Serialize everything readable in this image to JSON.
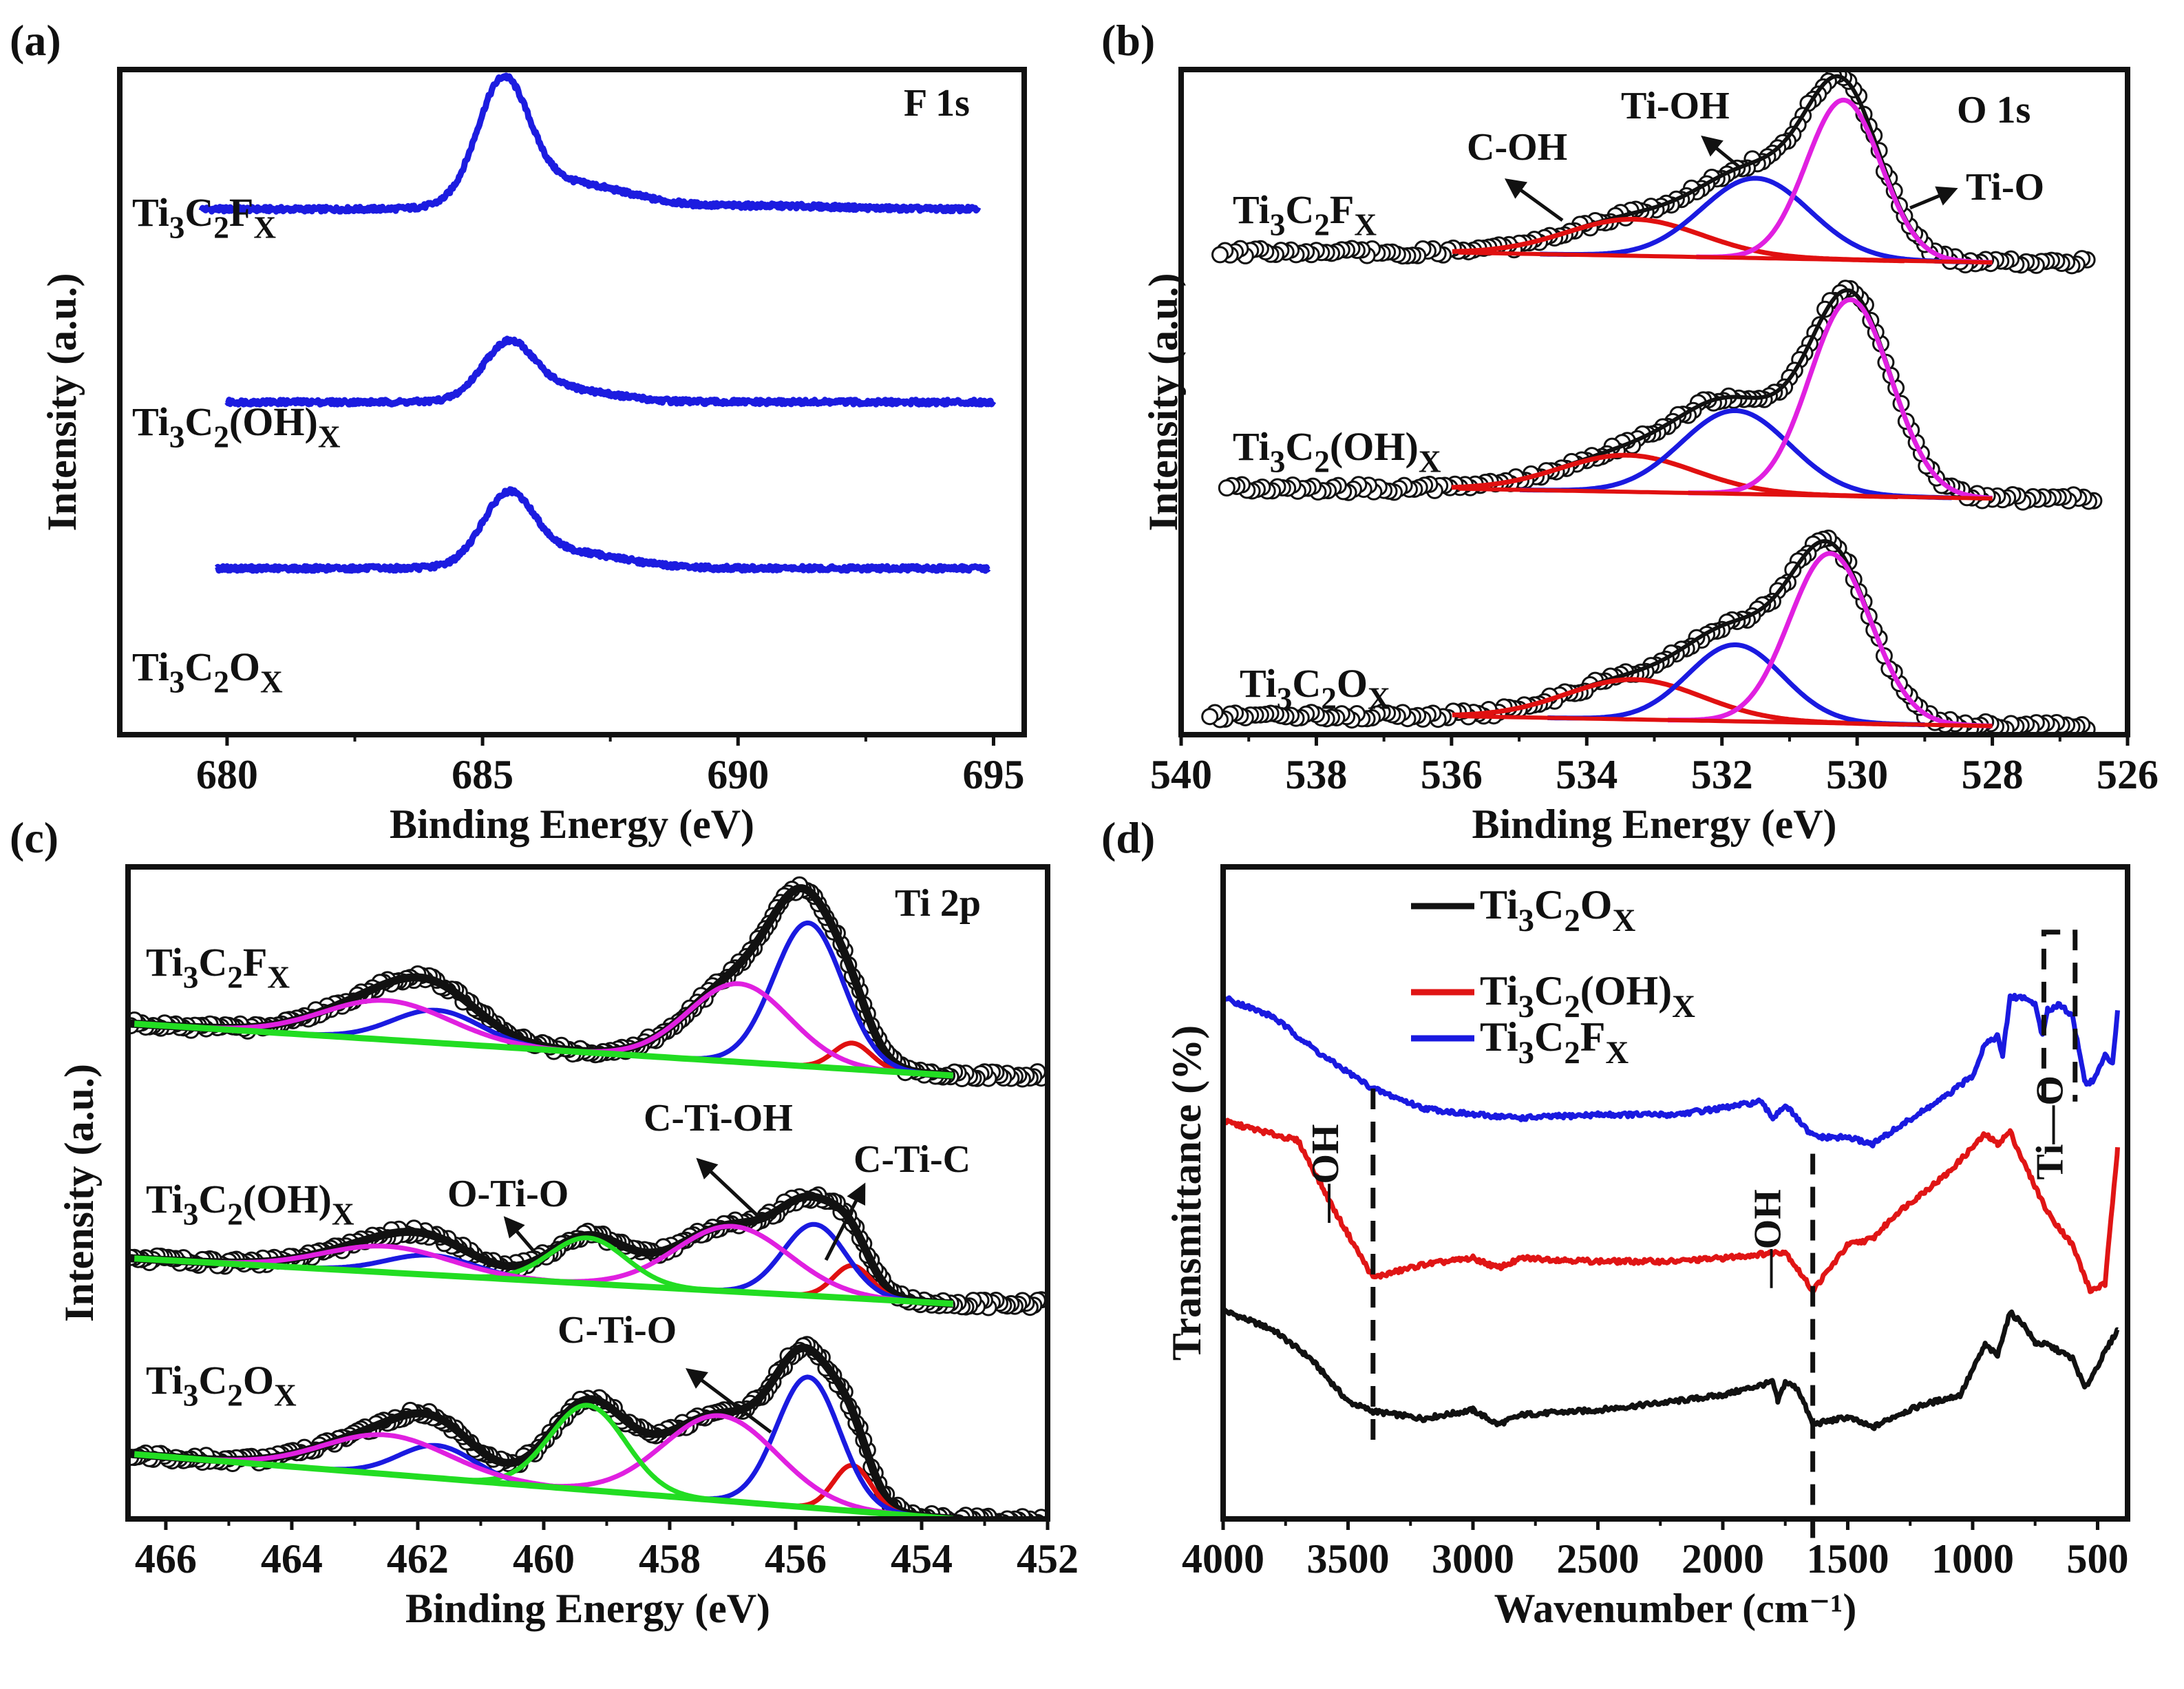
{
  "panel_labels": [
    "(a)",
    "(b)",
    "(c)",
    "(d)"
  ],
  "chart_data": [
    {
      "panel": "(a)",
      "type": "line",
      "title": "F 1s",
      "xlabel": "Binding Energy (eV)",
      "ylabel": "Intensity (a.u.)",
      "xlim": [
        677.9,
        695.6
      ],
      "ylim": [
        0,
        10
      ],
      "xticks": [
        680,
        685,
        690,
        695
      ],
      "color": "#1c1ce0",
      "series": [
        {
          "name": "Ti3C2FX",
          "x_range": [
            679.5,
            694.7
          ],
          "baseline": 7.9,
          "peaks": [
            {
              "center": 685.4,
              "amplitude": 1.75,
              "sigma": 0.5
            },
            {
              "center": 686.6,
              "amplitude": 0.4,
              "sigma": 1.2
            },
            {
              "center": 690.5,
              "amplitude": 0.05,
              "sigma": 1.5
            }
          ]
        },
        {
          "name": "Ti3C2(OH)X",
          "x_range": [
            680.0,
            695.0
          ],
          "baseline": 5.0,
          "peaks": [
            {
              "center": 685.5,
              "amplitude": 0.8,
              "sigma": 0.5
            },
            {
              "center": 686.5,
              "amplitude": 0.2,
              "sigma": 1.0
            }
          ]
        },
        {
          "name": "Ti3C2OX",
          "x_range": [
            679.8,
            694.9
          ],
          "baseline": 2.5,
          "peaks": [
            {
              "center": 685.5,
              "amplitude": 1.0,
              "sigma": 0.5
            },
            {
              "center": 686.6,
              "amplitude": 0.25,
              "sigma": 1.1
            }
          ]
        }
      ]
    },
    {
      "panel": "(b)",
      "type": "line",
      "title": "O 1s",
      "xlabel": "Binding Energy (eV)",
      "ylabel": "Intensity (a.u.)",
      "xlim": [
        540,
        526
      ],
      "ylim": [
        0,
        10
      ],
      "xticks": [
        540,
        538,
        536,
        534,
        532,
        530,
        528,
        526
      ],
      "fit_range": [
        536,
        528
      ],
      "series": [
        {
          "name": "Ti3C2FX",
          "x_range": [
            539.5,
            526.6
          ],
          "baseline": 7.1,
          "bg_slope": 0.15,
          "components": [
            {
              "name": "C-OH",
              "center": 533.3,
              "amplitude": 0.55,
              "sigma": 1.0,
              "color": "#e01010"
            },
            {
              "name": "Ti-OH",
              "center": 531.5,
              "amplitude": 1.2,
              "sigma": 0.8,
              "color": "#1a1ae0"
            },
            {
              "name": "Ti-O",
              "center": 530.2,
              "amplitude": 2.4,
              "sigma": 0.55,
              "color": "#e020e0"
            }
          ]
        },
        {
          "name": "Ti3C2(OH)X",
          "x_range": [
            539.4,
            526.5
          ],
          "baseline": 3.55,
          "bg_slope": 0.15,
          "components": [
            {
              "name": "C-OH",
              "center": 533.4,
              "amplitude": 0.55,
              "sigma": 1.0,
              "color": "#e01010"
            },
            {
              "name": "Ti-OH",
              "center": 531.8,
              "amplitude": 1.25,
              "sigma": 0.8,
              "color": "#1a1ae0"
            },
            {
              "name": "Ti-O",
              "center": 530.1,
              "amplitude": 2.95,
              "sigma": 0.6,
              "color": "#e020e0"
            }
          ]
        },
        {
          "name": "Ti3C2OX",
          "x_range": [
            539.6,
            526.6
          ],
          "baseline": 0.13,
          "bg_slope": 0.15,
          "components": [
            {
              "name": "C-OH",
              "center": 533.3,
              "amplitude": 0.6,
              "sigma": 1.0,
              "color": "#e01010"
            },
            {
              "name": "Ti-OH",
              "center": 531.8,
              "amplitude": 1.15,
              "sigma": 0.7,
              "color": "#1a1ae0"
            },
            {
              "name": "Ti-O",
              "center": 530.4,
              "amplitude": 2.55,
              "sigma": 0.6,
              "color": "#e020e0"
            }
          ]
        }
      ],
      "annotations": [
        "C-OH",
        "Ti-OH",
        "Ti-O"
      ]
    },
    {
      "panel": "(c)",
      "type": "line",
      "title": "Ti 2p",
      "xlabel": "Binding Energy (eV)",
      "ylabel": "Intensity (a.u.)",
      "xlim": [
        466.6,
        452
      ],
      "ylim": [
        0,
        10
      ],
      "xticks": [
        466,
        464,
        462,
        460,
        458,
        456,
        454,
        452
      ],
      "fit_range": [
        466.6,
        453.5
      ],
      "background_color": "#22dd22",
      "series": [
        {
          "name": "Ti3C2FX",
          "x_range": [
            466.6,
            452.1
          ],
          "bg_left": 7.6,
          "bg_right": 6.8,
          "components": [
            {
              "center": 455.1,
              "amplitude": 0.4,
              "sigma": 0.3,
              "color": "#e01010"
            },
            {
              "center": 455.8,
              "amplitude": 2.2,
              "sigma": 0.55,
              "color": "#1a1ae0"
            },
            {
              "center": 456.9,
              "amplitude": 1.2,
              "sigma": 0.8,
              "color": "#e020e0"
            },
            {
              "center": 461.7,
              "amplitude": 0.5,
              "sigma": 0.7,
              "color": "#1a1ae0"
            },
            {
              "center": 462.5,
              "amplitude": 0.6,
              "sigma": 1.0,
              "color": "#e020e0"
            }
          ]
        },
        {
          "name": "Ti3C2(OH)X",
          "x_range": [
            466.6,
            452.1
          ],
          "bg_left": 4.0,
          "bg_right": 3.3,
          "components": [
            {
              "center": 455.1,
              "amplitude": 0.5,
              "sigma": 0.3,
              "color": "#e01010"
            },
            {
              "center": 455.7,
              "amplitude": 1.1,
              "sigma": 0.5,
              "color": "#1a1ae0"
            },
            {
              "center": 457.0,
              "amplitude": 1.0,
              "sigma": 0.9,
              "color": "#e020e0"
            },
            {
              "center": 459.3,
              "amplitude": 0.7,
              "sigma": 0.6,
              "color": "#22dd22"
            },
            {
              "center": 461.8,
              "amplitude": 0.3,
              "sigma": 0.7,
              "color": "#1a1ae0"
            },
            {
              "center": 462.5,
              "amplitude": 0.4,
              "sigma": 1.0,
              "color": "#e020e0"
            }
          ]
        },
        {
          "name": "Ti3C2OX",
          "x_range": [
            466.6,
            452.1
          ],
          "bg_left": 1.0,
          "bg_right": 0.0,
          "components": [
            {
              "center": 455.1,
              "amplitude": 0.7,
              "sigma": 0.3,
              "color": "#e01010"
            },
            {
              "center": 455.8,
              "amplitude": 2.0,
              "sigma": 0.5,
              "color": "#1a1ae0"
            },
            {
              "center": 457.2,
              "amplitude": 1.3,
              "sigma": 0.9,
              "color": "#e020e0"
            },
            {
              "center": 459.3,
              "amplitude": 1.3,
              "sigma": 0.6,
              "color": "#22dd22"
            },
            {
              "center": 461.7,
              "amplitude": 0.5,
              "sigma": 0.6,
              "color": "#1a1ae0"
            },
            {
              "center": 462.5,
              "amplitude": 0.6,
              "sigma": 1.0,
              "color": "#e020e0"
            }
          ]
        }
      ],
      "annotations": [
        "O-Ti-O",
        "C-Ti-OH",
        "C-Ti-C",
        "C-Ti-O"
      ]
    },
    {
      "panel": "(d)",
      "type": "line",
      "title": "",
      "xlabel": "Wavenumber (cm⁻¹)",
      "ylabel": "Transmittance (%)",
      "xlim": [
        4000,
        380
      ],
      "ylim": [
        0,
        100
      ],
      "xticks": [
        4000,
        3500,
        3000,
        2500,
        2000,
        1500,
        1000,
        500
      ],
      "legend_position": "top-left",
      "series": [
        {
          "name": "Ti3C2OX",
          "color": "#111111",
          "points": [
            [
              4000,
              32
            ],
            [
              3800,
              29
            ],
            [
              3650,
              24.6
            ],
            [
              3500,
              18
            ],
            [
              3400,
              16.5
            ],
            [
              3200,
              15.4
            ],
            [
              3000,
              16.7
            ],
            [
              2900,
              14.5
            ],
            [
              2800,
              16
            ],
            [
              2500,
              16.7
            ],
            [
              2200,
              18
            ],
            [
              2000,
              19
            ],
            [
              1800,
              21
            ],
            [
              1780,
              18
            ],
            [
              1750,
              21
            ],
            [
              1700,
              20
            ],
            [
              1640,
              14.5
            ],
            [
              1500,
              15.6
            ],
            [
              1400,
              14
            ],
            [
              1300,
              16
            ],
            [
              1200,
              17.5
            ],
            [
              1050,
              19
            ],
            [
              950,
              26.7
            ],
            [
              900,
              25
            ],
            [
              880,
              28
            ],
            [
              850,
              31.6
            ],
            [
              800,
              30
            ],
            [
              750,
              27
            ],
            [
              700,
              26.7
            ],
            [
              600,
              24.6
            ],
            [
              550,
              20
            ],
            [
              470,
              25.6
            ],
            [
              420,
              29
            ]
          ]
        },
        {
          "name": "Ti3C2(OH)X",
          "color": "#e01515",
          "points": [
            [
              4000,
              61
            ],
            [
              3700,
              58
            ],
            [
              3550,
              47
            ],
            [
              3400,
              37
            ],
            [
              3200,
              39
            ],
            [
              3000,
              40
            ],
            [
              2900,
              38.5
            ],
            [
              2800,
              40
            ],
            [
              2500,
              39.5
            ],
            [
              2200,
              39.5
            ],
            [
              2000,
              40
            ],
            [
              1750,
              41
            ],
            [
              1640,
              35
            ],
            [
              1500,
              42
            ],
            [
              1400,
              43
            ],
            [
              1300,
              47
            ],
            [
              1100,
              53
            ],
            [
              950,
              59
            ],
            [
              900,
              57.5
            ],
            [
              850,
              59.4
            ],
            [
              800,
              55
            ],
            [
              700,
              47
            ],
            [
              600,
              42
            ],
            [
              530,
              35
            ],
            [
              470,
              36
            ],
            [
              420,
              57
            ]
          ]
        },
        {
          "name": "Ti3C2FX",
          "color": "#1a1ae0",
          "points": [
            [
              4000,
              80
            ],
            [
              3800,
              77
            ],
            [
              3600,
              71
            ],
            [
              3400,
              66
            ],
            [
              3200,
              63
            ],
            [
              3000,
              62
            ],
            [
              2800,
              61.5
            ],
            [
              2500,
              62
            ],
            [
              2200,
              62
            ],
            [
              2000,
              63
            ],
            [
              1850,
              64
            ],
            [
              1800,
              61.5
            ],
            [
              1750,
              63.5
            ],
            [
              1650,
              59
            ],
            [
              1600,
              58.5
            ],
            [
              1500,
              58.5
            ],
            [
              1400,
              57.5
            ],
            [
              1300,
              60
            ],
            [
              1100,
              65
            ],
            [
              1000,
              68
            ],
            [
              950,
              73
            ],
            [
              900,
              74
            ],
            [
              880,
              71
            ],
            [
              850,
              80
            ],
            [
              800,
              80
            ],
            [
              750,
              79
            ],
            [
              720,
              74
            ],
            [
              700,
              78
            ],
            [
              650,
              79
            ],
            [
              600,
              77
            ],
            [
              550,
              67
            ],
            [
              520,
              67
            ],
            [
              470,
              71
            ],
            [
              440,
              70
            ],
            [
              420,
              78
            ]
          ]
        }
      ],
      "markers": [
        {
          "wavenumber": 3400,
          "label": "—OH"
        },
        {
          "wavenumber": 1640,
          "label": "—OH"
        }
      ],
      "box": {
        "x_range": [
          715,
          590
        ],
        "label": "Ti—O"
      }
    }
  ]
}
